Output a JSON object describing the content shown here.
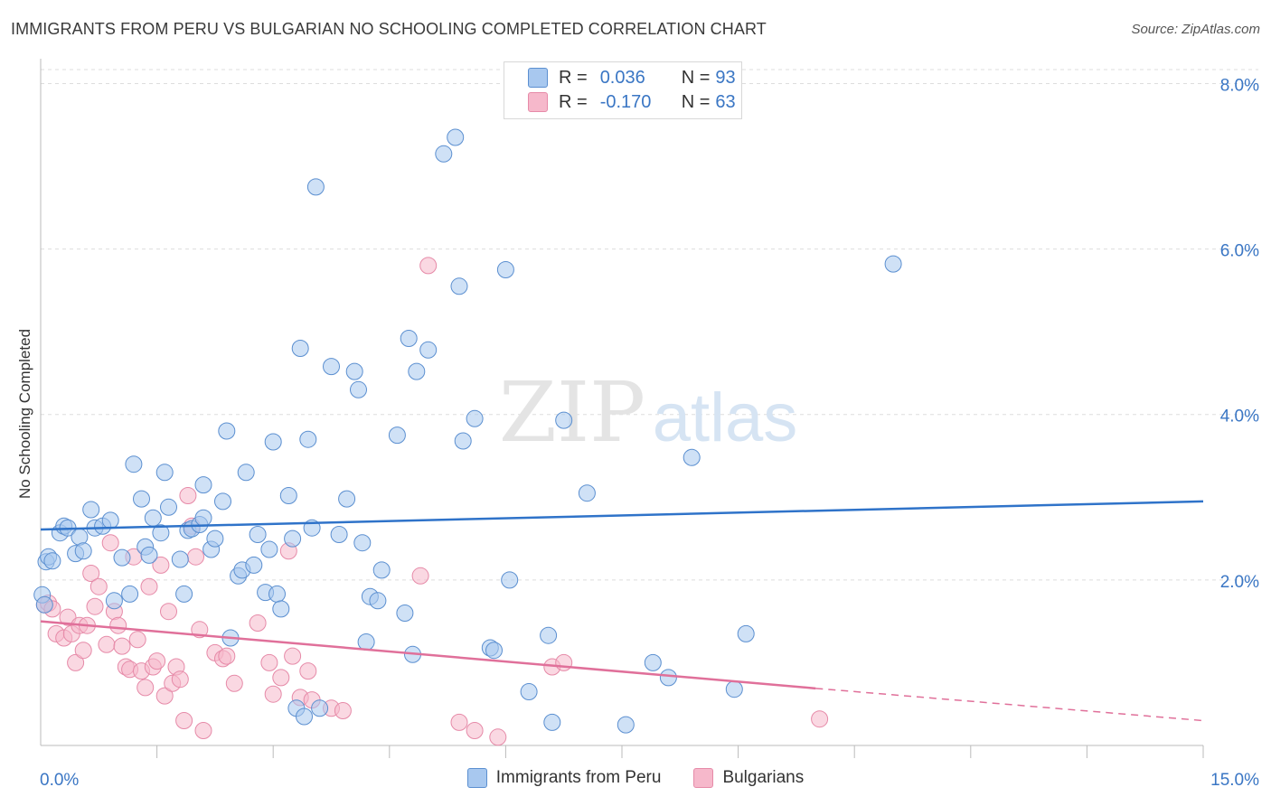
{
  "title": "IMMIGRANTS FROM PERU VS BULGARIAN NO SCHOOLING COMPLETED CORRELATION CHART",
  "source": "Source: ZipAtlas.com",
  "watermark": {
    "zip": "ZIP",
    "atlas": "atlas"
  },
  "legend": {
    "rows": [
      {
        "r_label": "R =",
        "r_value": "0.036",
        "n_label": "N =",
        "n_value": "93",
        "color": "#a8c8ef"
      },
      {
        "r_label": "R =",
        "r_value": "-0.170",
        "n_label": "N =",
        "n_value": "63",
        "color": "#f6b8cb"
      }
    ]
  },
  "colors": {
    "peru_fill": "#a8c8ef",
    "peru_stroke": "#5b8fd0",
    "peru_line": "#2f73c9",
    "bulg_fill": "#f6b8cb",
    "bulg_stroke": "#e68aa8",
    "bulg_line": "#e0709a",
    "grid": "#dddddd",
    "axis_text": "#3a76c4"
  },
  "chart_data": {
    "type": "scatter",
    "title": "IMMIGRANTS FROM PERU VS BULGARIAN NO SCHOOLING COMPLETED CORRELATION CHART",
    "xlabel": "",
    "ylabel": "No Schooling Completed",
    "xlim": [
      0,
      15
    ],
    "ylim": [
      0,
      8.3
    ],
    "x_tick_labels": [
      {
        "value": 0,
        "label": "0.0%"
      },
      {
        "value": 15,
        "label": "15.0%"
      }
    ],
    "y_tick_labels": [
      {
        "value": 2,
        "label": "2.0%"
      },
      {
        "value": 4,
        "label": "4.0%"
      },
      {
        "value": 6,
        "label": "6.0%"
      },
      {
        "value": 8,
        "label": "8.0%"
      }
    ],
    "series": [
      {
        "name": "Immigrants from Peru",
        "trend": {
          "x": [
            0,
            15
          ],
          "y": [
            2.61,
            2.95
          ]
        },
        "points": [
          [
            0.02,
            1.82
          ],
          [
            0.05,
            1.7
          ],
          [
            0.07,
            2.22
          ],
          [
            0.1,
            2.28
          ],
          [
            0.15,
            2.23
          ],
          [
            0.25,
            2.57
          ],
          [
            0.3,
            2.65
          ],
          [
            0.35,
            2.63
          ],
          [
            0.45,
            2.32
          ],
          [
            0.5,
            2.52
          ],
          [
            0.55,
            2.35
          ],
          [
            0.65,
            2.85
          ],
          [
            0.7,
            2.63
          ],
          [
            0.8,
            2.65
          ],
          [
            0.9,
            2.72
          ],
          [
            0.95,
            1.75
          ],
          [
            1.05,
            2.27
          ],
          [
            1.15,
            1.83
          ],
          [
            1.2,
            3.4
          ],
          [
            1.3,
            2.98
          ],
          [
            1.35,
            2.4
          ],
          [
            1.4,
            2.3
          ],
          [
            1.45,
            2.75
          ],
          [
            1.55,
            2.57
          ],
          [
            1.6,
            3.3
          ],
          [
            1.65,
            2.88
          ],
          [
            1.8,
            2.25
          ],
          [
            1.85,
            1.83
          ],
          [
            1.9,
            2.6
          ],
          [
            1.95,
            2.62
          ],
          [
            2.05,
            2.67
          ],
          [
            2.1,
            2.75
          ],
          [
            2.1,
            3.15
          ],
          [
            2.2,
            2.37
          ],
          [
            2.25,
            2.5
          ],
          [
            2.35,
            2.95
          ],
          [
            2.4,
            3.8
          ],
          [
            2.45,
            1.3
          ],
          [
            2.55,
            2.05
          ],
          [
            2.6,
            2.12
          ],
          [
            2.65,
            3.3
          ],
          [
            2.75,
            2.18
          ],
          [
            2.8,
            2.55
          ],
          [
            2.9,
            1.85
          ],
          [
            2.95,
            2.37
          ],
          [
            3.0,
            3.67
          ],
          [
            3.05,
            1.83
          ],
          [
            3.1,
            1.65
          ],
          [
            3.2,
            3.02
          ],
          [
            3.25,
            2.5
          ],
          [
            3.3,
            0.45
          ],
          [
            3.35,
            4.8
          ],
          [
            3.4,
            0.35
          ],
          [
            3.45,
            3.7
          ],
          [
            3.5,
            2.63
          ],
          [
            3.55,
            6.75
          ],
          [
            3.6,
            0.45
          ],
          [
            3.75,
            4.58
          ],
          [
            3.85,
            2.55
          ],
          [
            3.95,
            2.98
          ],
          [
            4.05,
            4.52
          ],
          [
            4.1,
            4.3
          ],
          [
            4.15,
            2.45
          ],
          [
            4.2,
            1.25
          ],
          [
            4.25,
            1.8
          ],
          [
            4.35,
            1.75
          ],
          [
            4.4,
            2.12
          ],
          [
            4.6,
            3.75
          ],
          [
            4.7,
            1.6
          ],
          [
            4.75,
            4.92
          ],
          [
            4.8,
            1.1
          ],
          [
            4.85,
            4.52
          ],
          [
            5.0,
            4.78
          ],
          [
            5.2,
            7.15
          ],
          [
            5.35,
            7.35
          ],
          [
            5.4,
            5.55
          ],
          [
            5.45,
            3.68
          ],
          [
            5.6,
            3.95
          ],
          [
            5.8,
            1.18
          ],
          [
            5.85,
            1.15
          ],
          [
            6.0,
            5.75
          ],
          [
            6.05,
            2.0
          ],
          [
            6.3,
            0.65
          ],
          [
            6.55,
            1.33
          ],
          [
            6.6,
            0.28
          ],
          [
            6.75,
            3.93
          ],
          [
            7.05,
            3.05
          ],
          [
            7.55,
            0.25
          ],
          [
            7.9,
            1.0
          ],
          [
            8.1,
            0.82
          ],
          [
            8.4,
            3.48
          ],
          [
            8.95,
            0.68
          ],
          [
            9.1,
            1.35
          ],
          [
            11.0,
            5.82
          ]
        ]
      },
      {
        "name": "Bulgarians",
        "trend": {
          "x": [
            0,
            10
          ],
          "y": [
            1.5,
            0.69
          ]
        },
        "trend_dashed": {
          "x": [
            10,
            15
          ],
          "y": [
            0.69,
            0.3
          ]
        },
        "points": [
          [
            0.05,
            1.7
          ],
          [
            0.1,
            1.72
          ],
          [
            0.15,
            1.65
          ],
          [
            0.2,
            1.35
          ],
          [
            0.3,
            1.3
          ],
          [
            0.35,
            1.55
          ],
          [
            0.4,
            1.35
          ],
          [
            0.45,
            1.0
          ],
          [
            0.5,
            1.45
          ],
          [
            0.55,
            1.15
          ],
          [
            0.6,
            1.45
          ],
          [
            0.65,
            2.08
          ],
          [
            0.7,
            1.68
          ],
          [
            0.75,
            1.92
          ],
          [
            0.85,
            1.22
          ],
          [
            0.9,
            2.45
          ],
          [
            0.95,
            1.62
          ],
          [
            1.0,
            1.45
          ],
          [
            1.05,
            1.2
          ],
          [
            1.1,
            0.95
          ],
          [
            1.15,
            0.92
          ],
          [
            1.2,
            2.28
          ],
          [
            1.25,
            1.28
          ],
          [
            1.3,
            0.9
          ],
          [
            1.35,
            0.7
          ],
          [
            1.4,
            1.92
          ],
          [
            1.45,
            0.95
          ],
          [
            1.5,
            1.02
          ],
          [
            1.55,
            2.18
          ],
          [
            1.6,
            0.6
          ],
          [
            1.65,
            1.62
          ],
          [
            1.7,
            0.75
          ],
          [
            1.75,
            0.95
          ],
          [
            1.8,
            0.8
          ],
          [
            1.85,
            0.3
          ],
          [
            1.9,
            3.02
          ],
          [
            1.95,
            2.65
          ],
          [
            2.0,
            2.28
          ],
          [
            2.05,
            1.4
          ],
          [
            2.1,
            0.18
          ],
          [
            2.25,
            1.12
          ],
          [
            2.35,
            1.05
          ],
          [
            2.4,
            1.08
          ],
          [
            2.5,
            0.75
          ],
          [
            2.8,
            1.48
          ],
          [
            2.95,
            1.0
          ],
          [
            3.0,
            0.62
          ],
          [
            3.1,
            0.82
          ],
          [
            3.2,
            2.35
          ],
          [
            3.25,
            1.08
          ],
          [
            3.35,
            0.58
          ],
          [
            3.45,
            0.9
          ],
          [
            3.5,
            0.55
          ],
          [
            3.75,
            0.45
          ],
          [
            3.9,
            0.42
          ],
          [
            4.9,
            2.05
          ],
          [
            5.0,
            5.8
          ],
          [
            5.4,
            0.28
          ],
          [
            5.6,
            0.18
          ],
          [
            5.9,
            0.1
          ],
          [
            6.6,
            0.95
          ],
          [
            6.75,
            1.0
          ],
          [
            10.05,
            0.32
          ]
        ]
      }
    ],
    "legend_position": "bottom"
  },
  "bottom_legend": [
    {
      "label": "Immigrants from Peru",
      "color": "#a8c8ef"
    },
    {
      "label": "Bulgarians",
      "color": "#f6b8cb"
    }
  ]
}
